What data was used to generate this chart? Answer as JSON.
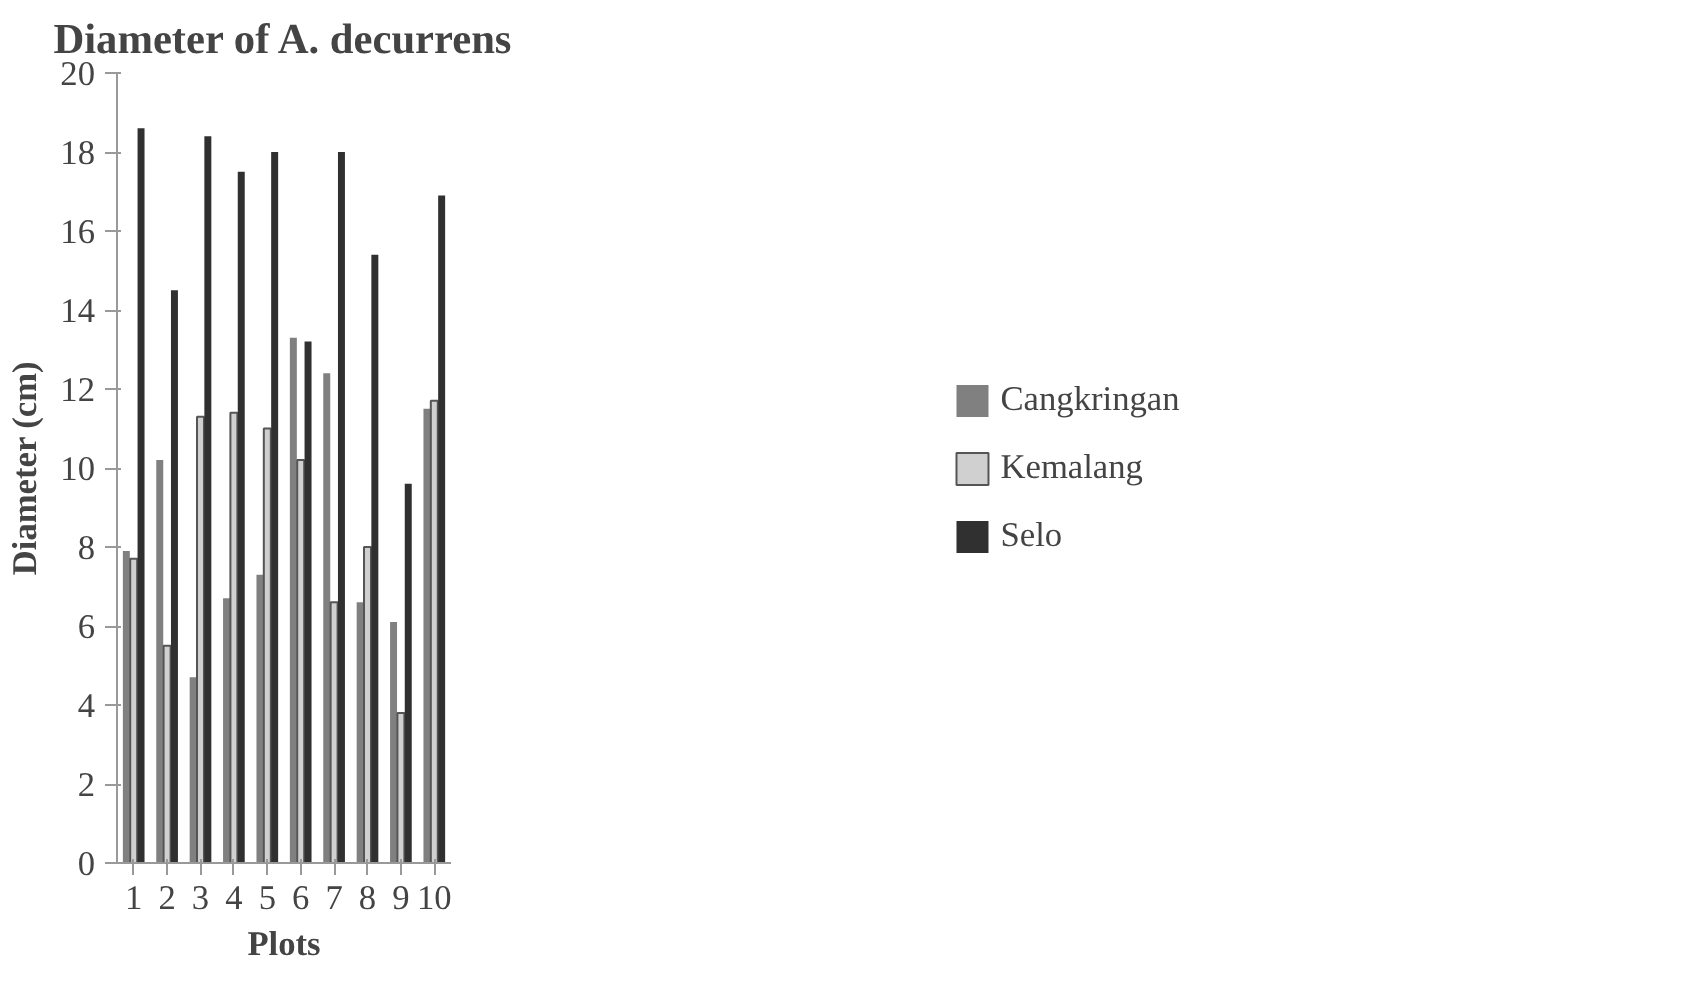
{
  "chart_data": {
    "type": "bar",
    "title": "Diameter of A. decurrens",
    "xlabel": "Plots",
    "ylabel": "Diameter (cm)",
    "categories": [
      "1",
      "2",
      "3",
      "4",
      "5",
      "6",
      "7",
      "8",
      "9",
      "10"
    ],
    "series": [
      {
        "name": "Cangkringan",
        "color": "#808080",
        "values": [
          7.9,
          10.2,
          4.7,
          6.7,
          7.3,
          13.3,
          12.4,
          6.6,
          6.1,
          11.5
        ]
      },
      {
        "name": "Kemalang",
        "color": "#d0d0d0",
        "values": [
          7.7,
          5.5,
          11.3,
          11.4,
          11.0,
          10.2,
          6.6,
          8.0,
          3.8,
          11.7
        ]
      },
      {
        "name": "Selo",
        "color": "#303030",
        "values": [
          18.6,
          14.5,
          18.4,
          17.5,
          18.0,
          13.2,
          18.0,
          15.4,
          9.6,
          16.9
        ]
      }
    ],
    "ylim": [
      0,
      20
    ],
    "yticks": [
      0,
      2,
      4,
      6,
      8,
      10,
      12,
      14,
      16,
      18,
      20
    ],
    "grid": false,
    "legend": "right"
  }
}
